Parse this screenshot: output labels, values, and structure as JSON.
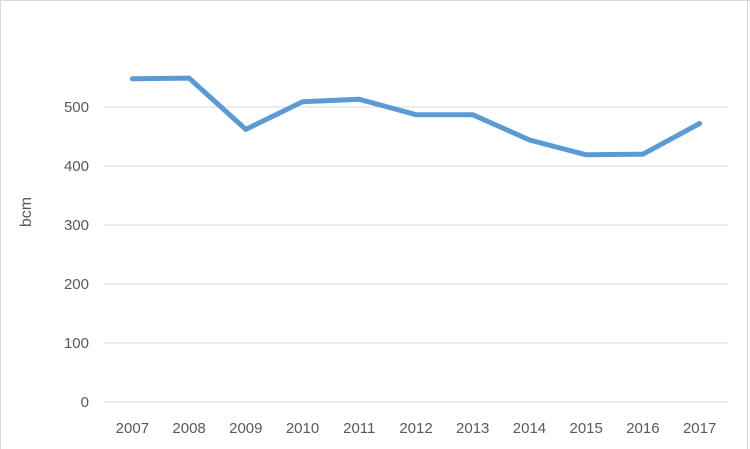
{
  "chart_data": {
    "type": "line",
    "title": "",
    "xlabel": "",
    "ylabel": "bcm",
    "categories": [
      "2007",
      "2008",
      "2009",
      "2010",
      "2011",
      "2012",
      "2013",
      "2014",
      "2015",
      "2016",
      "2017"
    ],
    "series": [
      {
        "name": "bcm",
        "values": [
          548,
          549,
          462,
          509,
          513,
          487,
          487,
          444,
          419,
          420,
          472
        ]
      }
    ],
    "yticks": [
      0,
      100,
      200,
      300,
      400,
      500
    ],
    "ylim": [
      0,
      600
    ],
    "grid": "horizontal-major-only",
    "legend": "none"
  },
  "colors": {
    "series_line": "#5b9bd5",
    "gridline": "#d9d9d9",
    "frame_border": "#d9d9d9",
    "tick_label": "#595959"
  }
}
